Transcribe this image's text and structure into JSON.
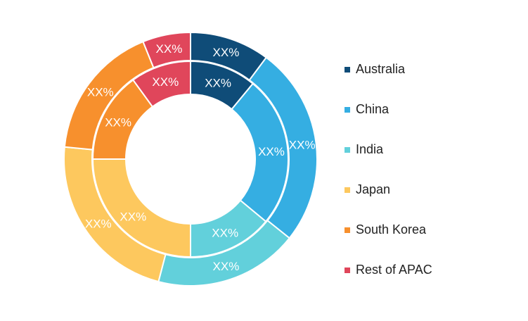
{
  "chart_data": {
    "type": "pie",
    "title": "",
    "rings": [
      {
        "ring": "outer",
        "categories": [
          "Australia",
          "China",
          "India",
          "Japan",
          "South Korea",
          "Rest of APAC"
        ],
        "values": [
          10,
          25,
          18,
          22,
          17,
          6
        ],
        "labels": [
          "XX%",
          "XX%",
          "XX%",
          "XX%",
          "XX%",
          "XX%"
        ]
      },
      {
        "ring": "inner",
        "categories": [
          "Australia",
          "China",
          "India",
          "Japan",
          "South Korea",
          "Rest of APAC"
        ],
        "values": [
          11,
          25,
          14,
          25,
          15,
          10
        ],
        "labels": [
          "XX%",
          "XX%",
          "XX%",
          "XX%",
          "XX%",
          "XX%"
        ]
      }
    ],
    "legend": {
      "position": "right",
      "entries": [
        {
          "label": "Australia",
          "color": "#0f4c78"
        },
        {
          "label": "China",
          "color": "#35aee2"
        },
        {
          "label": "India",
          "color": "#62d0db"
        },
        {
          "label": "Japan",
          "color": "#fdc85e"
        },
        {
          "label": "South Korea",
          "color": "#f7902d"
        },
        {
          "label": "Rest of APAC",
          "color": "#e0465b"
        }
      ]
    }
  }
}
